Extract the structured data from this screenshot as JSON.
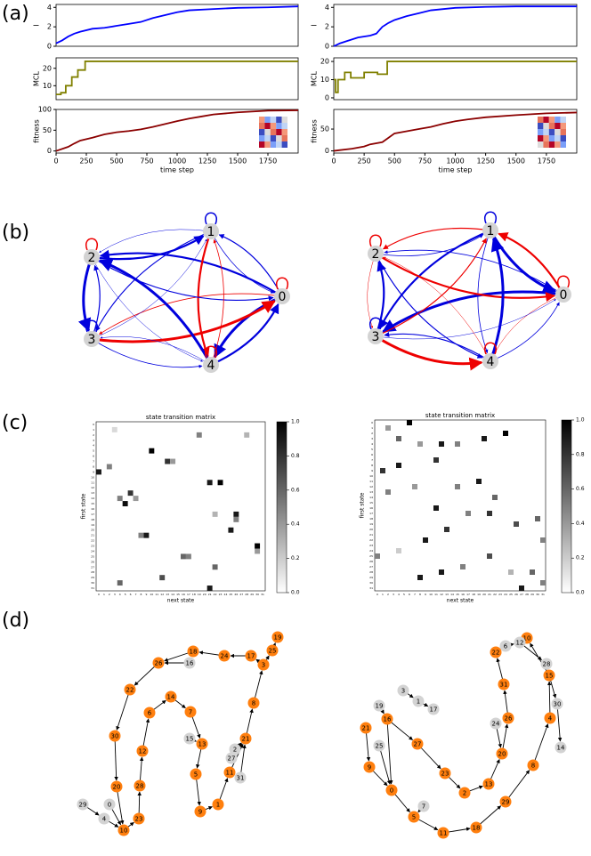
{
  "panel_labels": [
    "(a)",
    "(b)",
    "(c)",
    "(d)"
  ],
  "chart_data": [
    {
      "type": "line",
      "ylabel": "I",
      "color": "#0000ff",
      "xlim": [
        0,
        2000
      ],
      "ylim": [
        0,
        4.3
      ],
      "yticks": [
        0,
        2,
        4
      ],
      "x": [
        0,
        50,
        100,
        150,
        200,
        300,
        400,
        500,
        600,
        700,
        800,
        900,
        1000,
        1100,
        1250,
        1500,
        1750,
        2000
      ],
      "values": [
        0.3,
        0.6,
        1.0,
        1.3,
        1.5,
        1.8,
        1.9,
        2.1,
        2.3,
        2.5,
        2.9,
        3.2,
        3.5,
        3.7,
        3.8,
        3.95,
        4.0,
        4.1
      ]
    },
    {
      "type": "line",
      "ylabel": "MCL",
      "color": "#808000",
      "xlim": [
        0,
        2000
      ],
      "ylim": [
        2,
        26
      ],
      "yticks": [
        10,
        20
      ],
      "x": [
        0,
        40,
        40,
        80,
        80,
        130,
        130,
        180,
        180,
        240,
        240,
        2000
      ],
      "values": [
        5,
        5,
        6,
        6,
        10,
        10,
        15,
        15,
        19,
        19,
        24,
        24
      ]
    },
    {
      "type": "line",
      "ylabel": "fitness",
      "xlabel": "time step",
      "color": "#8b0000",
      "xlim": [
        0,
        2000
      ],
      "ylim": [
        -5,
        100
      ],
      "yticks": [
        0,
        50,
        100
      ],
      "xticks": [
        0,
        250,
        500,
        750,
        1000,
        1250,
        1500,
        1750
      ],
      "x": [
        0,
        100,
        150,
        200,
        300,
        400,
        500,
        600,
        700,
        800,
        900,
        1000,
        1100,
        1200,
        1300,
        1500,
        1750,
        2000
      ],
      "values": [
        0,
        10,
        18,
        25,
        32,
        40,
        45,
        48,
        52,
        58,
        65,
        72,
        78,
        83,
        88,
        93,
        97,
        98
      ]
    },
    {
      "type": "line",
      "ylabel": "I",
      "color": "#0000ff",
      "xlim": [
        0,
        2000
      ],
      "ylim": [
        0,
        4.3
      ],
      "yticks": [
        0,
        2,
        4
      ],
      "x": [
        0,
        50,
        100,
        200,
        300,
        350,
        400,
        450,
        500,
        600,
        700,
        800,
        1000,
        1250,
        1500,
        2000
      ],
      "values": [
        0,
        0.3,
        0.5,
        0.9,
        1.1,
        1.3,
        2.0,
        2.4,
        2.7,
        3.1,
        3.4,
        3.7,
        3.95,
        4.05,
        4.1,
        4.1
      ]
    },
    {
      "type": "line",
      "ylabel": "MCL",
      "color": "#808000",
      "xlim": [
        0,
        2000
      ],
      "ylim": [
        -1,
        22
      ],
      "yticks": [
        0,
        10,
        20
      ],
      "x": [
        0,
        15,
        15,
        35,
        35,
        90,
        90,
        140,
        140,
        250,
        250,
        360,
        360,
        440,
        440,
        2000
      ],
      "values": [
        10,
        10,
        3,
        3,
        10,
        10,
        14,
        14,
        11,
        11,
        14,
        14,
        13,
        13,
        20,
        20
      ]
    },
    {
      "type": "line",
      "ylabel": "fitness",
      "xlabel": "time step",
      "color": "#8b0000",
      "xlim": [
        0,
        2000
      ],
      "ylim": [
        -5,
        95
      ],
      "yticks": [
        0,
        50
      ],
      "xticks": [
        0,
        250,
        500,
        750,
        1000,
        1250,
        1500,
        1750
      ],
      "x": [
        0,
        150,
        250,
        300,
        400,
        450,
        500,
        600,
        700,
        800,
        900,
        1000,
        1100,
        1250,
        1500,
        1750,
        2000
      ],
      "values": [
        0,
        5,
        10,
        15,
        20,
        30,
        40,
        45,
        50,
        55,
        62,
        68,
        72,
        77,
        82,
        86,
        88
      ]
    }
  ],
  "transition_graphs": [
    {
      "nodes": [
        0,
        1,
        2,
        3,
        4
      ]
    },
    {
      "nodes": [
        0,
        1,
        2,
        3,
        4
      ]
    }
  ],
  "heatmaps": [
    {
      "title": "state transition matrix",
      "xlabel": "next state",
      "ylabel": "first state",
      "state_labels": [
        0,
        1,
        2,
        3,
        4,
        5,
        6,
        7,
        8,
        9,
        10,
        11,
        12,
        13,
        14,
        15,
        16,
        17,
        18,
        19,
        20,
        21,
        22,
        23,
        24,
        25,
        26,
        27,
        28,
        29,
        30,
        31
      ],
      "cells": [
        [
          5,
          10,
          1
        ],
        [
          9,
          0,
          0.9
        ],
        [
          8,
          2,
          0.5
        ],
        [
          15,
          5,
          0.95
        ],
        [
          13,
          6,
          0.8
        ],
        [
          11,
          21,
          0.9
        ],
        [
          11,
          23,
          1
        ],
        [
          17,
          26,
          0.9
        ],
        [
          20,
          25,
          0.9
        ],
        [
          23,
          30,
          1
        ],
        [
          21,
          9,
          0.9
        ],
        [
          21,
          8,
          0.5
        ],
        [
          25,
          16,
          0.6
        ],
        [
          25,
          17,
          0.5
        ],
        [
          31,
          21,
          0.9
        ],
        [
          27,
          22,
          0.6
        ],
        [
          30,
          4,
          0.6
        ],
        [
          29,
          12,
          0.7
        ],
        [
          7,
          13,
          0.8
        ],
        [
          7,
          14,
          0.4
        ],
        [
          2,
          19,
          0.5
        ],
        [
          2,
          28,
          0.3
        ],
        [
          14,
          7,
          0.4
        ],
        [
          14,
          4,
          0.5
        ],
        [
          18,
          26,
          0.5
        ],
        [
          24,
          30,
          0.4
        ],
        [
          17,
          22,
          0.3
        ],
        [
          1,
          3,
          0.15
        ]
      ],
      "colorbar_ticks": [
        {
          "value": 0,
          "label": "0.0"
        },
        {
          "value": 0.2,
          "label": "0.2"
        },
        {
          "value": 0.4,
          "label": "0.4"
        },
        {
          "value": 0.6,
          "label": "0.6"
        },
        {
          "value": 0.8,
          "label": "0.8"
        },
        {
          "value": 1,
          "label": "1.0"
        }
      ]
    },
    {
      "title": "state transition matrix",
      "xlabel": "next state",
      "ylabel": "first state",
      "state_labels": [
        0,
        1,
        2,
        3,
        4,
        5,
        6,
        7,
        8,
        9,
        10,
        11,
        12,
        13,
        14,
        15,
        16,
        17,
        18,
        19,
        20,
        21,
        22,
        23,
        24,
        25,
        26,
        27,
        28,
        29,
        30,
        31
      ],
      "cells": [
        [
          0,
          6,
          1
        ],
        [
          1,
          2,
          0.4
        ],
        [
          3,
          4,
          0.6
        ],
        [
          4,
          8,
          0.4
        ],
        [
          4,
          12,
          0.9
        ],
        [
          7,
          11,
          0.8
        ],
        [
          3,
          20,
          0.9
        ],
        [
          2,
          24,
          1
        ],
        [
          4,
          15,
          0.5
        ],
        [
          9,
          1,
          0.8
        ],
        [
          8,
          4,
          0.9
        ],
        [
          11,
          19,
          0.9
        ],
        [
          13,
          2,
          0.5
        ],
        [
          12,
          7,
          0.4
        ],
        [
          16,
          11,
          0.9
        ],
        [
          12,
          15,
          0.5
        ],
        [
          14,
          22,
          0.6
        ],
        [
          17,
          21,
          0.8
        ],
        [
          17,
          17,
          0.5
        ],
        [
          18,
          30,
          0.6
        ],
        [
          22,
          9,
          0.9
        ],
        [
          20,
          13,
          0.8
        ],
        [
          19,
          26,
          0.7
        ],
        [
          22,
          31,
          0.5
        ],
        [
          25,
          0,
          0.5
        ],
        [
          25,
          21,
          0.7
        ],
        [
          27,
          16,
          0.5
        ],
        [
          29,
          8,
          0.9
        ],
        [
          28,
          12,
          0.9
        ],
        [
          28,
          25,
          0.3
        ],
        [
          28,
          29,
          0.6
        ],
        [
          31,
          27,
          0.9
        ],
        [
          30,
          31,
          0.5
        ],
        [
          24,
          4,
          0.2
        ]
      ],
      "colorbar_ticks": [
        {
          "value": 0,
          "label": "0.0"
        },
        {
          "value": 0.2,
          "label": "0.2"
        },
        {
          "value": 0.4,
          "label": "0.4"
        },
        {
          "value": 0.6,
          "label": "0.6"
        },
        {
          "value": 0.8,
          "label": "0.8"
        },
        {
          "value": 1,
          "label": "1.0"
        }
      ]
    }
  ],
  "state_graphs": [
    {
      "nodes": [
        {
          "label": 19,
          "color": "#ff7f0e"
        },
        {
          "label": 25,
          "color": "#ff7f0e"
        },
        {
          "label": 3,
          "color": "#ff7f0e"
        },
        {
          "label": 17,
          "color": "#ff7f0e"
        },
        {
          "label": 24,
          "color": "#ff7f0e"
        },
        {
          "label": 18,
          "color": "#ff7f0e"
        },
        {
          "label": 16,
          "color": "#d3d3d3"
        },
        {
          "label": 26,
          "color": "#ff7f0e"
        },
        {
          "label": 22,
          "color": "#ff7f0e"
        },
        {
          "label": 14,
          "color": "#ff7f0e"
        },
        {
          "label": 6,
          "color": "#ff7f0e"
        },
        {
          "label": 7,
          "color": "#ff7f0e"
        },
        {
          "label": 8,
          "color": "#ff7f0e"
        },
        {
          "label": 30,
          "color": "#ff7f0e"
        },
        {
          "label": 15,
          "color": "#d3d3d3"
        },
        {
          "label": 13,
          "color": "#ff7f0e"
        },
        {
          "label": 12,
          "color": "#ff7f0e"
        },
        {
          "label": 21,
          "color": "#ff7f0e"
        },
        {
          "label": 2,
          "color": "#d3d3d3"
        },
        {
          "label": 27,
          "color": "#d3d3d3"
        },
        {
          "label": 5,
          "color": "#ff7f0e"
        },
        {
          "label": 11,
          "color": "#ff7f0e"
        },
        {
          "label": 31,
          "color": "#d3d3d3"
        },
        {
          "label": 20,
          "color": "#ff7f0e"
        },
        {
          "label": 28,
          "color": "#ff7f0e"
        },
        {
          "label": 0,
          "color": "#d3d3d3"
        },
        {
          "label": 29,
          "color": "#d3d3d3"
        },
        {
          "label": 4,
          "color": "#d3d3d3"
        },
        {
          "label": 9,
          "color": "#ff7f0e"
        },
        {
          "label": 1,
          "color": "#ff7f0e"
        },
        {
          "label": 23,
          "color": "#ff7f0e"
        },
        {
          "label": 10,
          "color": "#ff7f0e"
        }
      ]
    },
    {
      "nodes": [
        {
          "label": 10,
          "color": "#ff7f0e"
        },
        {
          "label": 12,
          "color": "#d3d3d3"
        },
        {
          "label": 6,
          "color": "#d3d3d3"
        },
        {
          "label": 28,
          "color": "#d3d3d3"
        },
        {
          "label": 22,
          "color": "#ff7f0e"
        },
        {
          "label": 15,
          "color": "#ff7f0e"
        },
        {
          "label": 3,
          "color": "#d3d3d3"
        },
        {
          "label": 1,
          "color": "#d3d3d3"
        },
        {
          "label": 17,
          "color": "#d3d3d3"
        },
        {
          "label": 19,
          "color": "#d3d3d3"
        },
        {
          "label": 30,
          "color": "#d3d3d3"
        },
        {
          "label": 31,
          "color": "#ff7f0e"
        },
        {
          "label": 16,
          "color": "#ff7f0e"
        },
        {
          "label": 26,
          "color": "#ff7f0e"
        },
        {
          "label": 4,
          "color": "#ff7f0e"
        },
        {
          "label": 24,
          "color": "#d3d3d3"
        },
        {
          "label": 21,
          "color": "#ff7f0e"
        },
        {
          "label": 27,
          "color": "#ff7f0e"
        },
        {
          "label": 25,
          "color": "#d3d3d3"
        },
        {
          "label": 14,
          "color": "#d3d3d3"
        },
        {
          "label": 20,
          "color": "#ff7f0e"
        },
        {
          "label": 8,
          "color": "#ff7f0e"
        },
        {
          "label": 9,
          "color": "#ff7f0e"
        },
        {
          "label": 23,
          "color": "#ff7f0e"
        },
        {
          "label": 13,
          "color": "#ff7f0e"
        },
        {
          "label": 0,
          "color": "#ff7f0e"
        },
        {
          "label": 2,
          "color": "#ff7f0e"
        },
        {
          "label": 29,
          "color": "#ff7f0e"
        },
        {
          "label": 7,
          "color": "#d3d3d3"
        },
        {
          "label": 5,
          "color": "#ff7f0e"
        },
        {
          "label": 18,
          "color": "#ff7f0e"
        },
        {
          "label": 11,
          "color": "#ff7f0e"
        }
      ]
    }
  ]
}
